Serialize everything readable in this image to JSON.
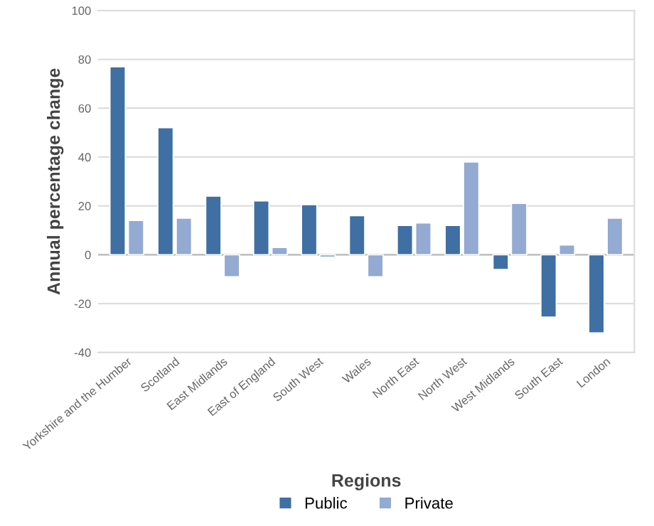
{
  "chart_data": {
    "type": "bar",
    "categories": [
      "Yorkshire and the Humber",
      "Scotland",
      "East Midlands",
      "East of England",
      "South West",
      "Wales",
      "North East",
      "North West",
      "West Midlands",
      "South East",
      "London"
    ],
    "series": [
      {
        "name": "Public",
        "color": "#3f6fa3",
        "values": [
          77,
          52,
          24,
          22,
          20.5,
          16,
          12,
          12,
          -6,
          -25.5,
          -32
        ]
      },
      {
        "name": "Private",
        "color": "#93aad2",
        "values": [
          14,
          15,
          -9,
          3,
          -1,
          -9,
          13,
          38,
          21,
          4,
          15
        ]
      }
    ],
    "xlabel": "Regions",
    "ylabel": "Annual percentage change",
    "ylim": [
      -40,
      100
    ],
    "yticks": [
      -40,
      -20,
      0,
      20,
      40,
      60,
      80,
      100
    ],
    "grid": "y",
    "legend": "bottom"
  }
}
